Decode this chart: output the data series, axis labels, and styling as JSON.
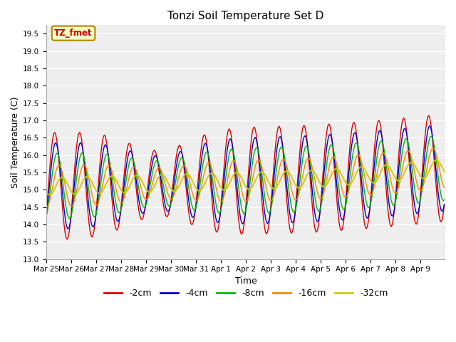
{
  "title": "Tonzi Soil Temperature Set D",
  "xlabel": "Time",
  "ylabel": "Soil Temperature (C)",
  "ylim": [
    13.0,
    19.75
  ],
  "yticks": [
    13.0,
    13.5,
    14.0,
    14.5,
    15.0,
    15.5,
    16.0,
    16.5,
    17.0,
    17.5,
    18.0,
    18.5,
    19.0,
    19.5
  ],
  "legend_label": "TZ_fmet",
  "legend_box_color": "#ffffcc",
  "legend_box_edge": "#aa8800",
  "legend_text_color": "#cc0000",
  "series_labels": [
    "-2cm",
    "-4cm",
    "-8cm",
    "-16cm",
    "-32cm"
  ],
  "series_colors": [
    "#dd0000",
    "#0000cc",
    "#00bb00",
    "#ff8800",
    "#cccc00"
  ],
  "fig_bg_color": "#ffffff",
  "plot_bg_color": "#eeeeee",
  "x_labels": [
    "Mar 25",
    "Mar 26",
    "Mar 27",
    "Mar 28",
    "Mar 29",
    "Mar 30",
    "Mar 31",
    "Apr 1",
    "Apr 2",
    "Apr 3",
    "Apr 4",
    "Apr 5",
    "Apr 6",
    "Apr 7",
    "Apr 8",
    "Apr 9"
  ],
  "n_days": 16,
  "pts_per_day": 24
}
